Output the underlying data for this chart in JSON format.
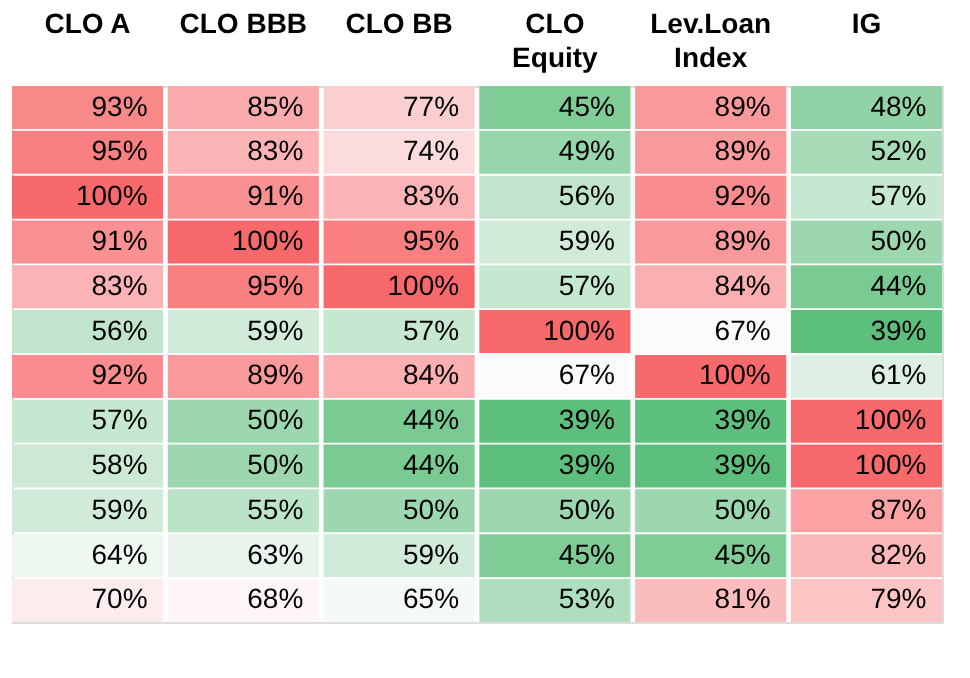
{
  "chart_data": {
    "type": "heatmap",
    "categories": [
      "CLO A",
      "CLO BBB",
      "CLO BB",
      "CLO Equity",
      "Lev.Loan Index",
      "IG"
    ],
    "y_categories": [
      null,
      null,
      null,
      null,
      null,
      null,
      null,
      null,
      null,
      null,
      null,
      null
    ],
    "tick_labels": "x",
    "cells": [
      [
        93,
        85,
        77,
        45,
        89,
        48
      ],
      [
        95,
        83,
        74,
        49,
        89,
        52
      ],
      [
        100,
        91,
        83,
        56,
        92,
        57
      ],
      [
        91,
        100,
        95,
        59,
        89,
        50
      ],
      [
        83,
        95,
        100,
        57,
        84,
        44
      ],
      [
        56,
        59,
        57,
        100,
        67,
        39
      ],
      [
        92,
        89,
        84,
        67,
        100,
        61
      ],
      [
        57,
        50,
        44,
        39,
        39,
        100
      ],
      [
        58,
        50,
        44,
        39,
        39,
        100
      ],
      [
        59,
        55,
        50,
        50,
        50,
        87
      ],
      [
        64,
        63,
        59,
        45,
        45,
        82
      ],
      [
        70,
        68,
        65,
        53,
        81,
        79
      ]
    ],
    "cell_labels": [
      [
        "93%",
        "85%",
        "77%",
        "45%",
        "89%",
        "48%"
      ],
      [
        "95%",
        "83%",
        "74%",
        "49%",
        "89%",
        "52%"
      ],
      [
        "100%",
        "91%",
        "83%",
        "56%",
        "92%",
        "57%"
      ],
      [
        "91%",
        "100%",
        "95%",
        "59%",
        "89%",
        "50%"
      ],
      [
        "83%",
        "95%",
        "100%",
        "57%",
        "84%",
        "44%"
      ],
      [
        "56%",
        "59%",
        "57%",
        "100%",
        "67%",
        "39%"
      ],
      [
        "92%",
        "89%",
        "84%",
        "67%",
        "100%",
        "61%"
      ],
      [
        "57%",
        "50%",
        "44%",
        "39%",
        "39%",
        "100%"
      ],
      [
        "58%",
        "50%",
        "44%",
        "39%",
        "39%",
        "100%"
      ],
      [
        "59%",
        "55%",
        "50%",
        "50%",
        "50%",
        "87%"
      ],
      [
        "64%",
        "63%",
        "59%",
        "45%",
        "45%",
        "82%"
      ],
      [
        "70%",
        "68%",
        "65%",
        "53%",
        "81%",
        "79%"
      ]
    ]
  }
}
